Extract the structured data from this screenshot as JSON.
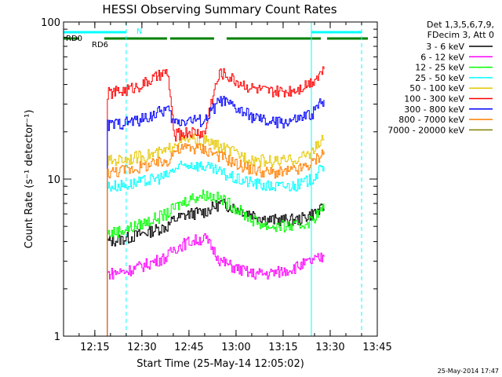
{
  "chart_data": {
    "type": "line",
    "title": "HESSI Observing Summary Count Rates",
    "xlabel": "Start Time (25-May-14 12:05:02)",
    "ylabel": "Count Rate (s⁻¹ detector⁻¹)",
    "ylog": true,
    "ylim": [
      1,
      100
    ],
    "xlim": [
      "12:05:02",
      "13:45:00"
    ],
    "x_ticks": [
      "12:15",
      "12:30",
      "12:45",
      "13:00",
      "13:15",
      "13:30",
      "13:45"
    ],
    "y_ticks": [
      "1",
      "10",
      "100"
    ],
    "grid": false,
    "legend_position": "top-right",
    "legend_header": [
      "Det 1,3,5,6,7,9,",
      "FDecim 3, Att 0"
    ],
    "timestamp": "25-May-2014 17:47",
    "data_window": [
      "12:19",
      "13:28"
    ],
    "series": [
      {
        "name": "3 - 6 keV",
        "color": "#000000",
        "x": [
          "12:19",
          "12:25",
          "12:30",
          "12:38",
          "12:40",
          "12:45",
          "12:50",
          "12:55",
          "13:00",
          "13:05",
          "13:10",
          "13:15",
          "13:20",
          "13:24",
          "13:28"
        ],
        "y": [
          4.0,
          4.2,
          4.5,
          5.0,
          5.5,
          6.0,
          6.2,
          7.0,
          6.5,
          6.0,
          5.5,
          5.5,
          5.5,
          6.0,
          6.5
        ]
      },
      {
        "name": "6 - 12 keV",
        "color": "#ff00ff",
        "x": [
          "12:19",
          "12:25",
          "12:30",
          "12:38",
          "12:40",
          "12:45",
          "12:50",
          "12:55",
          "13:00",
          "13:05",
          "13:10",
          "13:15",
          "13:20",
          "13:24",
          "13:28"
        ],
        "y": [
          2.5,
          2.6,
          2.8,
          3.2,
          3.6,
          4.0,
          4.2,
          3.0,
          2.7,
          2.5,
          2.5,
          2.6,
          2.8,
          3.0,
          3.2
        ]
      },
      {
        "name": "12 - 25 keV",
        "color": "#00ff00",
        "x": [
          "12:19",
          "12:25",
          "12:30",
          "12:38",
          "12:40",
          "12:45",
          "12:50",
          "12:55",
          "13:00",
          "13:05",
          "13:10",
          "13:15",
          "13:20",
          "13:24",
          "13:28"
        ],
        "y": [
          4.5,
          4.8,
          5.2,
          6.0,
          6.5,
          7.5,
          8.0,
          7.5,
          6.5,
          5.5,
          5.0,
          5.0,
          5.0,
          5.5,
          6.5
        ]
      },
      {
        "name": "25 - 50 keV",
        "color": "#00ffff",
        "x": [
          "12:19",
          "12:25",
          "12:30",
          "12:38",
          "12:40",
          "12:45",
          "12:50",
          "12:55",
          "13:00",
          "13:05",
          "13:10",
          "13:15",
          "13:20",
          "13:24",
          "13:28"
        ],
        "y": [
          9.0,
          9.2,
          9.6,
          10.5,
          11.5,
          12.5,
          12.0,
          11.0,
          10.0,
          9.5,
          9.0,
          9.0,
          9.2,
          10.0,
          12.0
        ]
      },
      {
        "name": "50 - 100 keV",
        "color": "#e6c800",
        "x": [
          "12:19",
          "12:25",
          "12:30",
          "12:38",
          "12:40",
          "12:45",
          "12:50",
          "12:55",
          "13:00",
          "13:05",
          "13:10",
          "13:15",
          "13:20",
          "13:24",
          "13:28"
        ],
        "y": [
          13.0,
          13.5,
          14.0,
          15.0,
          17.0,
          18.0,
          17.5,
          16.0,
          14.5,
          13.5,
          13.0,
          13.0,
          13.5,
          15.0,
          18.0
        ]
      },
      {
        "name": "100 - 300 keV",
        "color": "#ff0000",
        "x": [
          "12:19",
          "12:25",
          "12:30",
          "12:38",
          "12:40",
          "12:45",
          "12:50",
          "12:55",
          "13:00",
          "13:05",
          "13:10",
          "13:15",
          "13:20",
          "13:24",
          "13:28"
        ],
        "y": [
          35.0,
          37.0,
          40.0,
          48.0,
          19.0,
          20.0,
          19.5,
          48.0,
          42.0,
          38.0,
          36.0,
          36.0,
          38.0,
          42.0,
          50.0
        ]
      },
      {
        "name": "300 - 800 keV",
        "color": "#0000ff",
        "x": [
          "12:19",
          "12:25",
          "12:30",
          "12:38",
          "12:40",
          "12:45",
          "12:50",
          "12:55",
          "13:00",
          "13:05",
          "13:10",
          "13:15",
          "13:20",
          "13:24",
          "13:28"
        ],
        "y": [
          22.0,
          23.0,
          24.0,
          28.0,
          23.0,
          24.0,
          23.5,
          32.0,
          28.0,
          25.0,
          23.0,
          23.0,
          24.0,
          26.0,
          32.0
        ]
      },
      {
        "name": "800 - 7000 keV",
        "color": "#ff8000",
        "x": [
          "12:19",
          "12:25",
          "12:30",
          "12:38",
          "12:40",
          "12:45",
          "12:50",
          "12:55",
          "13:00",
          "13:05",
          "13:10",
          "13:15",
          "13:20",
          "13:24",
          "13:28"
        ],
        "y": [
          11.0,
          11.5,
          12.0,
          13.0,
          15.0,
          16.0,
          15.5,
          14.0,
          12.5,
          11.5,
          11.0,
          11.0,
          11.5,
          12.5,
          15.0
        ]
      },
      {
        "name": "7000 - 20000 keV",
        "color": "#808000",
        "x": [],
        "y": []
      }
    ],
    "annotations": {
      "top_markers": [
        {
          "label": "RD0",
          "color": "#00ffff",
          "segments": [
            [
              "12:05:02",
              "12:25"
            ],
            [
              "13:24",
              "13:40"
            ]
          ]
        },
        {
          "label": "RD6",
          "color": "#008000",
          "segments": [
            [
              "12:05:02",
              "12:10"
            ],
            [
              "12:18",
              "12:38"
            ],
            [
              "12:39",
              "12:53"
            ],
            [
              "12:57",
              "13:27"
            ],
            [
              "13:29",
              "13:42"
            ]
          ]
        }
      ],
      "letters": [
        {
          "label": "N",
          "color": "#00ffff",
          "x": "12:27"
        }
      ],
      "vlines_solid": [
        {
          "color": "#00ffff",
          "x": [
            "12:05:02",
            "13:24"
          ]
        }
      ],
      "vlines_dashed": [
        {
          "color": "#00ffff",
          "x": [
            "12:25",
            "13:40"
          ]
        }
      ]
    }
  }
}
